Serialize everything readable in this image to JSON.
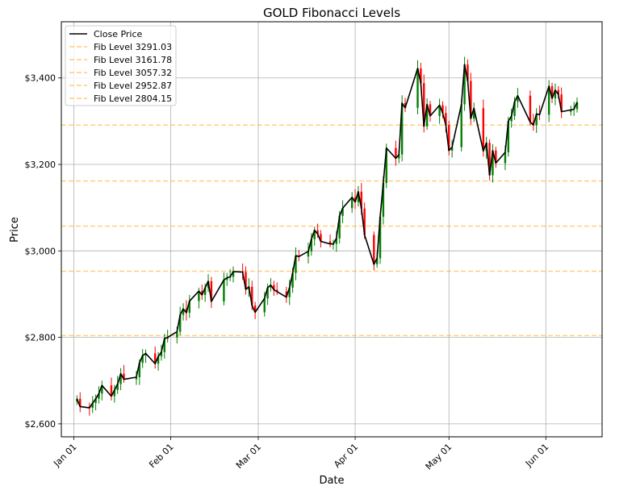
{
  "chart_data": {
    "type": "line",
    "title": "GOLD Fibonacci Levels",
    "xlabel": "Date",
    "ylabel": "Price",
    "ylim": [
      2570,
      3530
    ],
    "xlim": [
      "2024-12-28",
      "2025-06-19"
    ],
    "grid": true,
    "legend_position": "top-left",
    "y_ticks": [
      {
        "value": 2600,
        "label": "$2,600"
      },
      {
        "value": 2800,
        "label": "$2,800"
      },
      {
        "value": 3000,
        "label": "$3,000"
      },
      {
        "value": 3200,
        "label": "$3,200"
      },
      {
        "value": 3400,
        "label": "$3,400"
      }
    ],
    "x_ticks": [
      {
        "date": "2025-01-01",
        "label": "Jan 01"
      },
      {
        "date": "2025-02-01",
        "label": "Feb 01"
      },
      {
        "date": "2025-03-01",
        "label": "Mar 01"
      },
      {
        "date": "2025-04-01",
        "label": "Apr 01"
      },
      {
        "date": "2025-05-01",
        "label": "May 01"
      },
      {
        "date": "2025-06-01",
        "label": "Jun 01"
      }
    ],
    "series": [
      {
        "name": "Close Price",
        "color": "#000000",
        "x": [
          "2025-01-02",
          "2025-01-03",
          "2025-01-06",
          "2025-01-07",
          "2025-01-08",
          "2025-01-09",
          "2025-01-10",
          "2025-01-13",
          "2025-01-14",
          "2025-01-15",
          "2025-01-16",
          "2025-01-17",
          "2025-01-21",
          "2025-01-22",
          "2025-01-23",
          "2025-01-24",
          "2025-01-27",
          "2025-01-28",
          "2025-01-29",
          "2025-01-30",
          "2025-01-31",
          "2025-02-03",
          "2025-02-04",
          "2025-02-05",
          "2025-02-06",
          "2025-02-07",
          "2025-02-10",
          "2025-02-11",
          "2025-02-12",
          "2025-02-13",
          "2025-02-14",
          "2025-02-18",
          "2025-02-19",
          "2025-02-20",
          "2025-02-21",
          "2025-02-24",
          "2025-02-25",
          "2025-02-26",
          "2025-02-27",
          "2025-02-28",
          "2025-03-03",
          "2025-03-04",
          "2025-03-05",
          "2025-03-06",
          "2025-03-07",
          "2025-03-10",
          "2025-03-11",
          "2025-03-12",
          "2025-03-13",
          "2025-03-14",
          "2025-03-17",
          "2025-03-18",
          "2025-03-19",
          "2025-03-20",
          "2025-03-21",
          "2025-03-24",
          "2025-03-25",
          "2025-03-26",
          "2025-03-27",
          "2025-03-28",
          "2025-03-31",
          "2025-04-01",
          "2025-04-02",
          "2025-04-03",
          "2025-04-04",
          "2025-04-07",
          "2025-04-08",
          "2025-04-09",
          "2025-04-10",
          "2025-04-11",
          "2025-04-14",
          "2025-04-15",
          "2025-04-16",
          "2025-04-17",
          "2025-04-21",
          "2025-04-22",
          "2025-04-23",
          "2025-04-24",
          "2025-04-25",
          "2025-04-28",
          "2025-04-29",
          "2025-04-30",
          "2025-05-01",
          "2025-05-02",
          "2025-05-05",
          "2025-05-06",
          "2025-05-07",
          "2025-05-08",
          "2025-05-09",
          "2025-05-12",
          "2025-05-13",
          "2025-05-14",
          "2025-05-15",
          "2025-05-16",
          "2025-05-19",
          "2025-05-20",
          "2025-05-21",
          "2025-05-22",
          "2025-05-23",
          "2025-05-27",
          "2025-05-28",
          "2025-05-29",
          "2025-05-30",
          "2025-06-02",
          "2025-06-03",
          "2025-06-04",
          "2025-06-05",
          "2025-06-06",
          "2025-06-09",
          "2025-06-10",
          "2025-06-11"
        ],
        "y": [
          2658,
          2640,
          2637,
          2648,
          2658,
          2670,
          2689,
          2664,
          2678,
          2692,
          2716,
          2703,
          2708,
          2741,
          2758,
          2763,
          2739,
          2756,
          2766,
          2797,
          2800,
          2813,
          2852,
          2866,
          2857,
          2884,
          2907,
          2898,
          2915,
          2930,
          2883,
          2933,
          2938,
          2940,
          2952,
          2951,
          2911,
          2917,
          2874,
          2858,
          2890,
          2915,
          2921,
          2910,
          2906,
          2893,
          2915,
          2949,
          2989,
          2987,
          2999,
          3027,
          3048,
          3039,
          3022,
          3016,
          3016,
          3029,
          3081,
          3099,
          3124,
          3113,
          3137,
          3098,
          3037,
          2969,
          2983,
          3079,
          3157,
          3238,
          3214,
          3223,
          3342,
          3331,
          3422,
          3388,
          3288,
          3339,
          3312,
          3337,
          3319,
          3291,
          3232,
          3240,
          3339,
          3431,
          3393,
          3306,
          3330,
          3231,
          3250,
          3175,
          3232,
          3203,
          3228,
          3300,
          3312,
          3345,
          3359,
          3298,
          3291,
          3317,
          3315,
          3381,
          3353,
          3372,
          3362,
          3322,
          3326,
          3328,
          3344
        ]
      }
    ],
    "fib_levels": [
      {
        "name": "Fib Level 3291.03",
        "value": 3291.03,
        "color": "#ffa500"
      },
      {
        "name": "Fib Level 3161.78",
        "value": 3161.78,
        "color": "#ffa500"
      },
      {
        "name": "Fib Level 3057.32",
        "value": 3057.32,
        "color": "#ffa500"
      },
      {
        "name": "Fib Level 2952.87",
        "value": 2952.87,
        "color": "#ffa500"
      },
      {
        "name": "Fib Level 2804.15",
        "value": 2804.15,
        "color": "#ffa500"
      }
    ],
    "candle_colors": {
      "up": "#008000",
      "down": "#ff0000"
    }
  }
}
